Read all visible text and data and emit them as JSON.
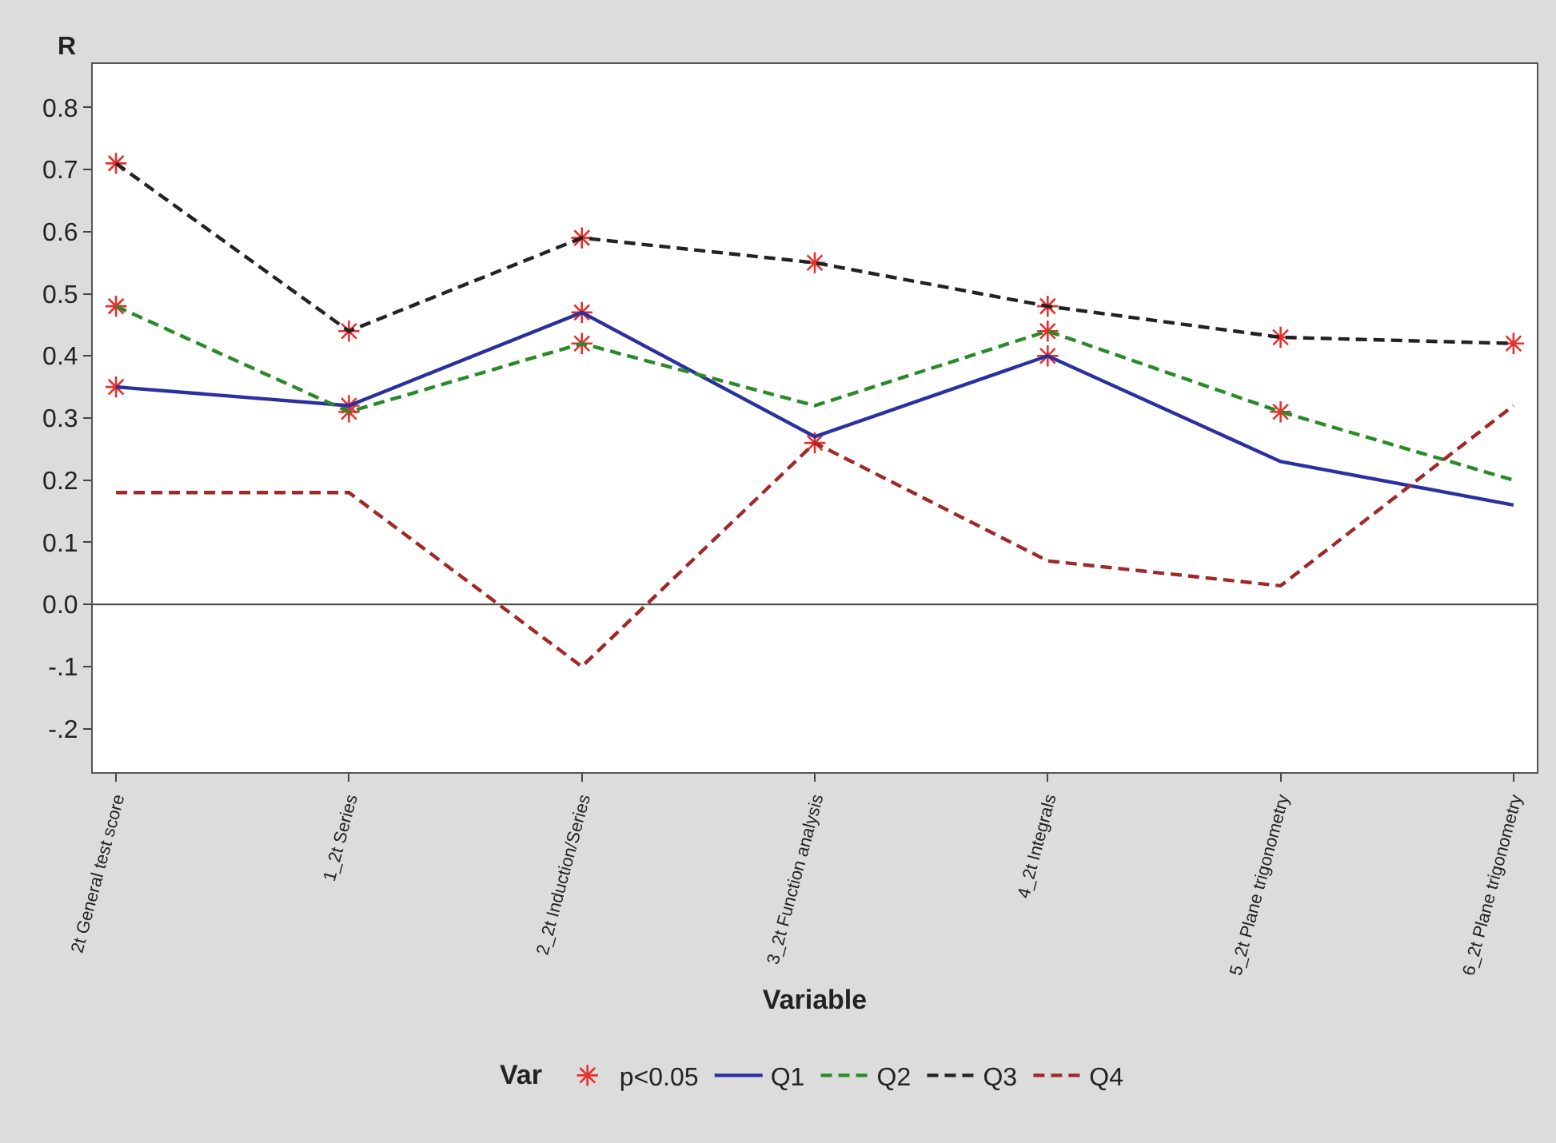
{
  "chart_data": {
    "type": "line",
    "ylabel": "R",
    "xlabel": "Variable",
    "legend_title": "Var",
    "categories": [
      "2t General test score",
      "1_2t Series",
      "2_2t Induction/Series",
      "3_2t Function analysis",
      "4_2t Integrals",
      "5_2t Plane trigonometry",
      "6_2t Plane trigonometry"
    ],
    "series": [
      {
        "name": "p<0.05",
        "type": "scatter",
        "marker": "cross",
        "color": "#e8302c",
        "x": [
          "2t General test score",
          "2t General test score",
          "2t General test score",
          "1_2t Series",
          "1_2t Series",
          "1_2t Series",
          "2_2t Induction/Series",
          "2_2t Induction/Series",
          "2_2t Induction/Series",
          "3_2t Function analysis",
          "3_2t Function analysis",
          "4_2t Integrals",
          "4_2t Integrals",
          "4_2t Integrals",
          "5_2t Plane trigonometry",
          "5_2t Plane trigonometry",
          "6_2t Plane trigonometry"
        ],
        "values": [
          0.71,
          0.48,
          0.35,
          0.44,
          0.31,
          0.32,
          0.59,
          0.47,
          0.42,
          0.55,
          0.26,
          0.48,
          0.44,
          0.4,
          0.43,
          0.31,
          0.42
        ]
      },
      {
        "name": "Q1",
        "color": "#2b30a0",
        "line_style": "solid",
        "values": [
          0.35,
          0.32,
          0.47,
          0.27,
          0.4,
          0.23,
          0.16
        ]
      },
      {
        "name": "Q2",
        "color": "#2a8a2a",
        "line_style": "dashed",
        "values": [
          0.48,
          0.31,
          0.42,
          0.32,
          0.44,
          0.31,
          0.2
        ]
      },
      {
        "name": "Q3",
        "color": "#222222",
        "line_style": "dashed",
        "values": [
          0.71,
          0.44,
          0.59,
          0.55,
          0.48,
          0.43,
          0.42
        ]
      },
      {
        "name": "Q4",
        "color": "#a02828",
        "line_style": "dashed",
        "values": [
          0.18,
          0.18,
          -0.1,
          0.26,
          0.07,
          0.03,
          0.32
        ]
      }
    ],
    "ylim": [
      -0.27,
      0.87
    ],
    "yticks": [
      {
        "value": -0.2,
        "label": "-.2"
      },
      {
        "value": -0.1,
        "label": "-.1"
      },
      {
        "value": 0.0,
        "label": "0.0"
      },
      {
        "value": 0.1,
        "label": "0.1"
      },
      {
        "value": 0.2,
        "label": "0.2"
      },
      {
        "value": 0.3,
        "label": "0.3"
      },
      {
        "value": 0.4,
        "label": "0.4"
      },
      {
        "value": 0.5,
        "label": "0.5"
      },
      {
        "value": 0.6,
        "label": "0.6"
      },
      {
        "value": 0.7,
        "label": "0.7"
      },
      {
        "value": 0.8,
        "label": "0.8"
      }
    ],
    "ref_lines": [
      {
        "axis": "y",
        "value": 0.0,
        "color": "#555555",
        "line_style": "solid"
      }
    ],
    "grid": false,
    "legend": "bottom",
    "marker": "none"
  }
}
